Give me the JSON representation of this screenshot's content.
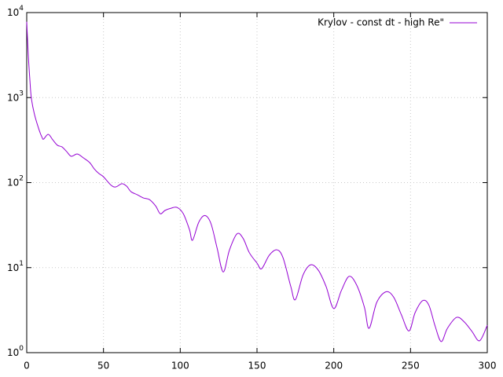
{
  "chart_data": {
    "type": "line",
    "log_y": true,
    "grid": true,
    "legend": "top-right",
    "xlim": [
      0,
      300
    ],
    "xticks": [
      0,
      50,
      100,
      150,
      200,
      250,
      300
    ],
    "ylim": [
      1,
      10000
    ],
    "yticks": [
      {
        "value": 1,
        "label": "10^0"
      },
      {
        "value": 10,
        "label": "10^1"
      },
      {
        "value": 100,
        "label": "10^2"
      },
      {
        "value": 1000,
        "label": "10^3"
      },
      {
        "value": 10000,
        "label": "10^4"
      }
    ],
    "series": [
      {
        "name": "Krylov - const dt - high Re\"",
        "color": "#9400d3",
        "x": [
          0,
          1,
          2,
          3,
          5,
          8,
          10,
          11,
          14,
          17,
          20,
          23,
          26,
          29,
          33,
          37,
          41,
          44,
          47,
          50,
          55,
          58,
          62,
          65,
          68,
          72,
          76,
          80,
          84,
          87,
          90,
          94,
          98,
          102,
          106,
          108,
          112,
          116,
          120,
          124,
          128,
          132,
          137,
          141,
          145,
          150,
          153,
          158,
          163,
          167,
          172,
          175,
          180,
          185,
          190,
          195,
          200,
          205,
          210,
          215,
          220,
          223,
          228,
          234,
          239,
          244,
          249,
          253,
          258,
          262,
          266,
          270,
          274,
          280,
          285,
          290,
          295,
          300
        ],
        "values": [
          7800,
          3200,
          1670,
          990,
          640,
          420,
          340,
          325,
          370,
          318,
          275,
          263,
          232,
          204,
          217,
          195,
          172,
          145,
          128,
          117,
          93,
          89,
          97,
          91,
          78,
          72,
          66,
          63,
          53,
          43,
          47,
          50,
          51,
          43,
          28,
          21,
          34,
          41,
          33,
          17,
          8.9,
          16,
          25,
          22,
          15,
          11.3,
          9.7,
          14,
          16.2,
          13,
          6,
          4.2,
          8.2,
          10.8,
          9.3,
          6,
          3.3,
          5.4,
          7.9,
          6.2,
          3.4,
          1.93,
          3.9,
          5.2,
          4.5,
          2.8,
          1.8,
          2.96,
          4.1,
          3.6,
          2.06,
          1.35,
          1.93,
          2.6,
          2.3,
          1.78,
          1.38,
          2.1
        ]
      }
    ]
  }
}
